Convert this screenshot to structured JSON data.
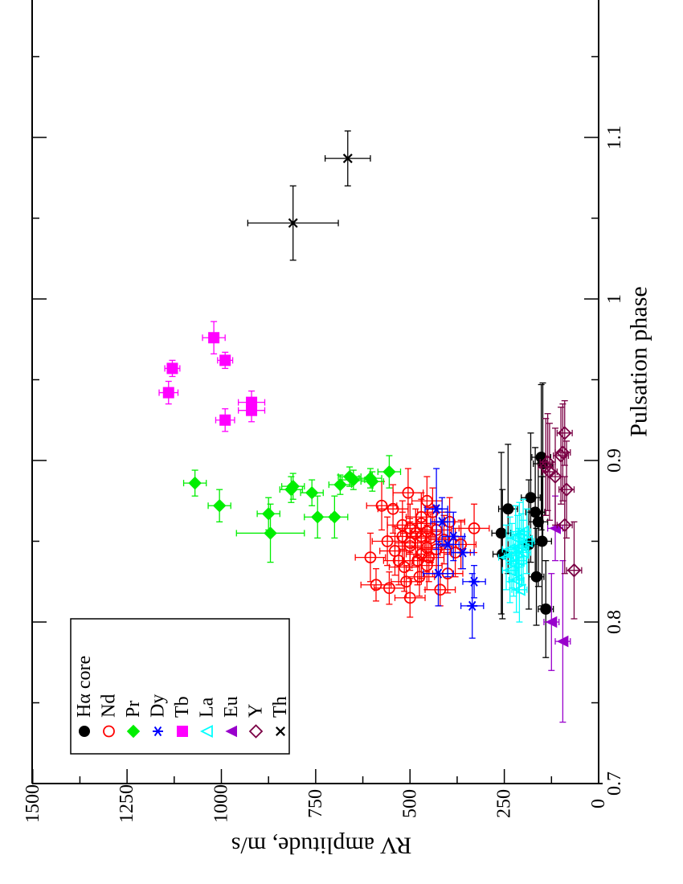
{
  "chart_data": {
    "type": "scatter",
    "orientation": "rotated-90-ccw",
    "xlabel": "Pulsation phase",
    "ylabel": "RV amplitude, m/s",
    "xlim": [
      0.7,
      1.2
    ],
    "ylim": [
      0,
      1500
    ],
    "x_ticks": [
      "0.7",
      "0.8",
      "0.9",
      "1",
      "1.1"
    ],
    "y_ticks": [
      "0",
      "250",
      "500",
      "750",
      "1000",
      "1250",
      "1500"
    ],
    "x_tick_values": [
      0.7,
      0.8,
      0.9,
      1.0,
      1.1
    ],
    "y_tick_values": [
      0,
      250,
      500,
      750,
      1000,
      1250,
      1500
    ],
    "legend_position": "bottom-left",
    "series": [
      {
        "name": "Hα core",
        "marker": "filled-circle",
        "color": "#000000",
        "points": [
          [
            0.808,
            140,
            0.03,
            20
          ],
          [
            0.828,
            165,
            0.03,
            20
          ],
          [
            0.842,
            255,
            0.04,
            25
          ],
          [
            0.848,
            185,
            0.04,
            25
          ],
          [
            0.85,
            150,
            0.04,
            25
          ],
          [
            0.855,
            258,
            0.05,
            25
          ],
          [
            0.862,
            160,
            0.04,
            25
          ],
          [
            0.868,
            168,
            0.04,
            25
          ],
          [
            0.87,
            240,
            0.04,
            25
          ],
          [
            0.877,
            180,
            0.04,
            25
          ],
          [
            0.898,
            148,
            0.05,
            25
          ],
          [
            0.902,
            152,
            0.045,
            25
          ]
        ]
      },
      {
        "name": "Nd",
        "marker": "open-circle",
        "color": "#ff0000",
        "points": [
          [
            0.815,
            500,
            0.012,
            40
          ],
          [
            0.82,
            420,
            0.01,
            40
          ],
          [
            0.821,
            555,
            0.01,
            40
          ],
          [
            0.823,
            590,
            0.01,
            40
          ],
          [
            0.825,
            510,
            0.01,
            40
          ],
          [
            0.828,
            475,
            0.012,
            40
          ],
          [
            0.83,
            400,
            0.012,
            40
          ],
          [
            0.835,
            455,
            0.015,
            40
          ],
          [
            0.838,
            530,
            0.015,
            40
          ],
          [
            0.84,
            605,
            0.015,
            40
          ],
          [
            0.842,
            470,
            0.015,
            40
          ],
          [
            0.845,
            430,
            0.015,
            40
          ],
          [
            0.847,
            500,
            0.015,
            40
          ],
          [
            0.85,
            560,
            0.015,
            40
          ],
          [
            0.852,
            445,
            0.015,
            40
          ],
          [
            0.855,
            485,
            0.015,
            40
          ],
          [
            0.858,
            330,
            0.015,
            40
          ],
          [
            0.86,
            520,
            0.015,
            40
          ],
          [
            0.862,
            395,
            0.015,
            40
          ],
          [
            0.865,
            470,
            0.015,
            40
          ],
          [
            0.868,
            440,
            0.015,
            40
          ],
          [
            0.87,
            545,
            0.015,
            40
          ],
          [
            0.872,
            575,
            0.015,
            40
          ],
          [
            0.875,
            455,
            0.015,
            40
          ],
          [
            0.88,
            505,
            0.015,
            40
          ],
          [
            0.843,
            380,
            0.015,
            40
          ],
          [
            0.848,
            365,
            0.015,
            40
          ],
          [
            0.853,
            520,
            0.015,
            40
          ],
          [
            0.838,
            480,
            0.015,
            40
          ],
          [
            0.846,
            455,
            0.015,
            40
          ],
          [
            0.851,
            410,
            0.015,
            40
          ],
          [
            0.857,
            430,
            0.015,
            40
          ],
          [
            0.861,
            470,
            0.015,
            40
          ],
          [
            0.834,
            515,
            0.015,
            40
          ],
          [
            0.849,
            500,
            0.015,
            40
          ],
          [
            0.853,
            470,
            0.015,
            40
          ],
          [
            0.844,
            540,
            0.015,
            40
          ],
          [
            0.856,
            455,
            0.015,
            40
          ],
          [
            0.84,
            450,
            0.015,
            40
          ],
          [
            0.858,
            500,
            0.015,
            40
          ]
        ]
      },
      {
        "name": "Pr",
        "marker": "filled-diamond",
        "color": "#00ee00",
        "points": [
          [
            0.855,
            870,
            0.018,
            90
          ],
          [
            0.865,
            745,
            0.013,
            35
          ],
          [
            0.865,
            700,
            0.013,
            35
          ],
          [
            0.867,
            875,
            0.01,
            30
          ],
          [
            0.872,
            1005,
            0.01,
            30
          ],
          [
            0.88,
            760,
            0.008,
            30
          ],
          [
            0.882,
            815,
            0.008,
            30
          ],
          [
            0.884,
            810,
            0.008,
            30
          ],
          [
            0.885,
            685,
            0.006,
            30
          ],
          [
            0.886,
            1070,
            0.008,
            30
          ],
          [
            0.887,
            600,
            0.006,
            30
          ],
          [
            0.888,
            650,
            0.006,
            30
          ],
          [
            0.889,
            605,
            0.006,
            30
          ],
          [
            0.89,
            660,
            0.006,
            30
          ],
          [
            0.893,
            555,
            0.01,
            30
          ]
        ]
      },
      {
        "name": "Dy",
        "marker": "asterisk",
        "color": "#0000ff",
        "points": [
          [
            0.81,
            335,
            0.02,
            30
          ],
          [
            0.825,
            330,
            0.01,
            30
          ],
          [
            0.83,
            425,
            0.02,
            40
          ],
          [
            0.843,
            360,
            0.01,
            30
          ],
          [
            0.848,
            400,
            0.02,
            30
          ],
          [
            0.853,
            385,
            0.015,
            30
          ],
          [
            0.862,
            415,
            0.015,
            30
          ],
          [
            0.87,
            430,
            0.025,
            30
          ]
        ]
      },
      {
        "name": "Tb",
        "marker": "filled-square",
        "color": "#ff00ff",
        "points": [
          [
            0.925,
            990,
            0.007,
            25
          ],
          [
            0.931,
            920,
            0.007,
            35
          ],
          [
            0.936,
            920,
            0.007,
            35
          ],
          [
            0.942,
            1140,
            0.007,
            25
          ],
          [
            0.957,
            1130,
            0.005,
            20
          ],
          [
            0.962,
            990,
            0.005,
            20
          ],
          [
            0.976,
            1020,
            0.01,
            30
          ]
        ]
      },
      {
        "name": "La",
        "marker": "open-triangle",
        "color": "#00ffff",
        "points": [
          [
            0.82,
            210,
            0.02,
            20
          ],
          [
            0.826,
            218,
            0.02,
            20
          ],
          [
            0.832,
            235,
            0.02,
            20
          ],
          [
            0.836,
            225,
            0.02,
            20
          ],
          [
            0.84,
            245,
            0.02,
            20
          ],
          [
            0.843,
            200,
            0.02,
            20
          ],
          [
            0.845,
            235,
            0.02,
            20
          ],
          [
            0.847,
            205,
            0.02,
            20
          ],
          [
            0.85,
            190,
            0.02,
            20
          ],
          [
            0.852,
            220,
            0.02,
            20
          ],
          [
            0.854,
            210,
            0.02,
            20
          ],
          [
            0.856,
            200,
            0.02,
            20
          ],
          [
            0.841,
            230,
            0.02,
            20
          ],
          [
            0.846,
            215,
            0.02,
            20
          ],
          [
            0.838,
            212,
            0.02,
            20
          ]
        ]
      },
      {
        "name": "Eu",
        "marker": "filled-triangle",
        "color": "#9900cc",
        "points": [
          [
            0.788,
            95,
            0.05,
            20
          ],
          [
            0.8,
            125,
            0.03,
            20
          ],
          [
            0.858,
            115,
            0.02,
            20
          ]
        ]
      },
      {
        "name": "Y",
        "marker": "open-diamond",
        "color": "#7a0044",
        "points": [
          [
            0.832,
            65,
            0.03,
            20
          ],
          [
            0.86,
            90,
            0.03,
            20
          ],
          [
            0.882,
            85,
            0.03,
            20
          ],
          [
            0.89,
            115,
            0.03,
            20
          ],
          [
            0.893,
            130,
            0.03,
            20
          ],
          [
            0.896,
            140,
            0.03,
            20
          ],
          [
            0.899,
            135,
            0.03,
            20
          ],
          [
            0.903,
            100,
            0.03,
            20
          ],
          [
            0.905,
            95,
            0.03,
            20
          ],
          [
            0.917,
            90,
            0.02,
            20
          ]
        ]
      },
      {
        "name": "Th",
        "marker": "cross",
        "color": "#000000",
        "points": [
          [
            1.047,
            810,
            0.023,
            120
          ],
          [
            1.087,
            665,
            0.017,
            60
          ]
        ]
      }
    ]
  }
}
